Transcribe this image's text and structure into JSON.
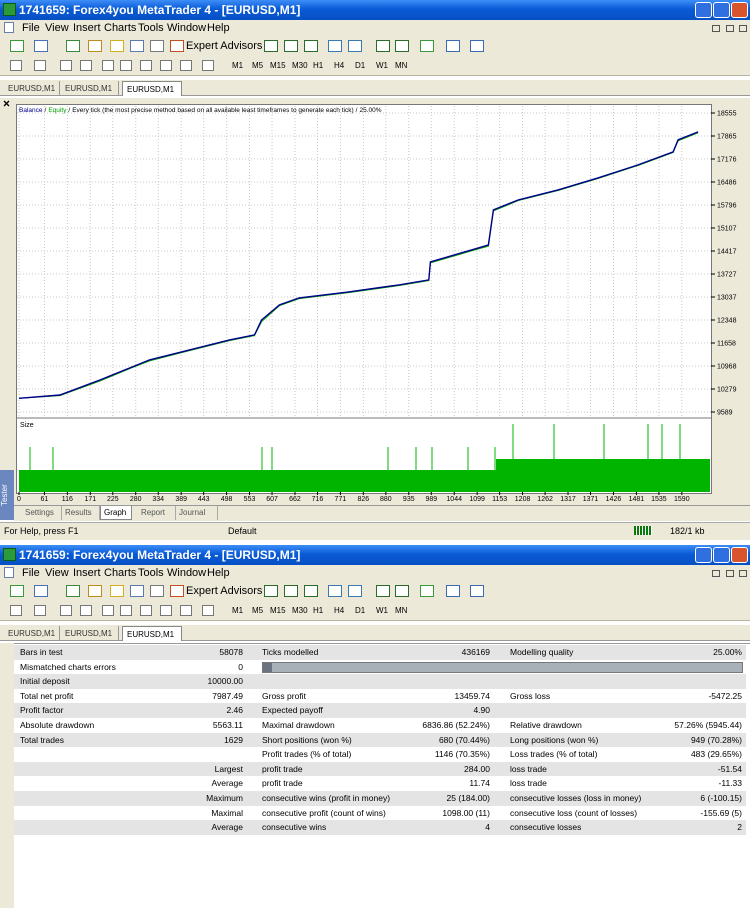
{
  "window": {
    "title": "1741659: Forex4you MetaTrader 4 - [EURUSD,M1]",
    "menu": [
      "File",
      "View",
      "Insert",
      "Charts",
      "Tools",
      "Window",
      "Help"
    ],
    "expert_advisors": "Expert Advisors",
    "timeframes": [
      "M1",
      "M5",
      "M15",
      "M30",
      "H1",
      "H4",
      "D1",
      "W1",
      "MN"
    ],
    "chart_tabs": [
      "EURUSD,M1",
      "EURUSD,M1",
      "EURUSD,M1"
    ]
  },
  "chart_data": {
    "type": "line",
    "separator": "/",
    "subtitle": "Every tick (the most precise method based on all available least timeframes to generate each tick)",
    "modelling_quality": "25.00%",
    "size_label": "Size",
    "x": [
      0,
      98,
      194,
      266,
      313,
      409,
      505,
      565,
      582,
      625,
      672,
      791,
      911,
      983,
      987,
      1102,
      1126,
      1138,
      1198,
      1293,
      1389,
      1485,
      1569,
      1581,
      1629
    ],
    "series": [
      {
        "name": "Balance",
        "color": "#00008b",
        "values": [
          10000,
          10100,
          10550,
          10910,
          11150,
          11450,
          11750,
          11900,
          12350,
          12800,
          13010,
          13190,
          13400,
          13550,
          14090,
          14510,
          14600,
          15650,
          15950,
          16250,
          16610,
          17000,
          17390,
          17750,
          17987
        ]
      },
      {
        "name": "Equity",
        "color": "#00a000",
        "values": [
          10000,
          10080,
          10520,
          10890,
          11120,
          11430,
          11730,
          11880,
          12300,
          12780,
          12990,
          13170,
          13380,
          13530,
          14060,
          14480,
          14560,
          15620,
          15930,
          16230,
          16590,
          16980,
          17370,
          17720,
          17960
        ]
      }
    ],
    "xlim": [
      0,
      1660
    ],
    "ylim": [
      9409,
      18795
    ],
    "xticks": [
      0,
      61,
      116,
      171,
      225,
      280,
      334,
      389,
      443,
      498,
      553,
      607,
      662,
      716,
      771,
      826,
      880,
      935,
      989,
      1044,
      1099,
      1153,
      1208,
      1262,
      1317,
      1371,
      1426,
      1481,
      1535,
      1590
    ],
    "yticks": [
      9589,
      10279,
      10968,
      11658,
      12348,
      13037,
      13727,
      14417,
      15107,
      15796,
      16486,
      17176,
      17865,
      18555
    ],
    "grid": true
  },
  "tester": {
    "side_label": "Tester",
    "tabs": [
      "Settings",
      "Results",
      "Graph",
      "Report",
      "Journal"
    ]
  },
  "status": {
    "help": "For Help, press F1",
    "profile": "Default",
    "traffic": "182/1 kb"
  },
  "report": {
    "rows": [
      [
        "Bars in test",
        "58078",
        "Ticks modelled",
        "436169",
        "Modelling quality",
        "25.00%"
      ],
      [
        "Mismatched charts errors",
        "0",
        null,
        null,
        null,
        null
      ],
      [
        "Initial deposit",
        "10000.00",
        null,
        null,
        null,
        null
      ],
      [
        "Total net profit",
        "7987.49",
        "Gross profit",
        "13459.74",
        "Gross loss",
        "-5472.25"
      ],
      [
        "Profit factor",
        "2.46",
        "Expected payoff",
        "4.90",
        null,
        null
      ],
      [
        "Absolute drawdown",
        "5563.11",
        "Maximal drawdown",
        "6836.86 (52.24%)",
        "Relative drawdown",
        "57.26% (5945.44)"
      ],
      [
        "Total trades",
        "1629",
        "Short positions (won %)",
        "680 (70.44%)",
        "Long positions (won %)",
        "949 (70.28%)"
      ],
      [
        null,
        null,
        "Profit trades (% of total)",
        "1146 (70.35%)",
        "Loss trades (% of total)",
        "483 (29.65%)"
      ],
      [
        null,
        "Largest",
        "profit trade",
        "284.00",
        "loss trade",
        "-51.54"
      ],
      [
        null,
        "Average",
        "profit trade",
        "11.74",
        "loss trade",
        "-11.33"
      ],
      [
        null,
        "Maximum",
        "consecutive wins (profit in money)",
        "25 (184.00)",
        "consecutive losses (loss in money)",
        "6 (-100.15)"
      ],
      [
        null,
        "Maximal",
        "consecutive profit (count of wins)",
        "1098.00 (11)",
        "consecutive loss (count of losses)",
        "-155.69 (5)"
      ],
      [
        null,
        "Average",
        "consecutive wins",
        "4",
        "consecutive losses",
        "2"
      ]
    ]
  }
}
